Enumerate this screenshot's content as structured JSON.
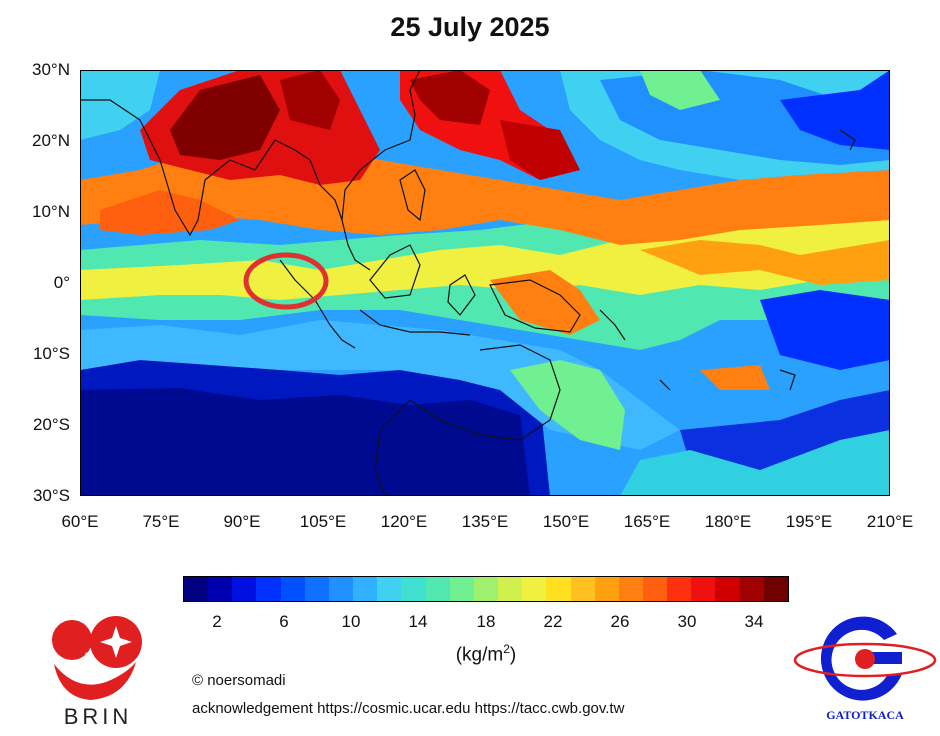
{
  "title": "25 July 2025",
  "map": {
    "lat_labels": [
      "30°N",
      "20°N",
      "10°N",
      "0°",
      "10°S",
      "20°S",
      "30°S"
    ],
    "lon_labels": [
      "60°E",
      "75°E",
      "90°E",
      "105°E",
      "120°E",
      "135°E",
      "150°E",
      "165°E",
      "180°E",
      "195°E",
      "210°E"
    ],
    "extent": {
      "lon": [
        60,
        210
      ],
      "lat": [
        -30,
        30
      ]
    },
    "highlight": {
      "description_center_lon": 98.5,
      "description_center_lat": 0.3,
      "color": "#e03030"
    }
  },
  "colorbar": {
    "ticks": [
      "2",
      "6",
      "10",
      "14",
      "18",
      "22",
      "26",
      "30",
      "34"
    ],
    "unit_prefix": "(kg/m",
    "unit_exp": "2",
    "unit_suffix": ")",
    "colors": [
      "#000080",
      "#0000b0",
      "#0010e0",
      "#0030ff",
      "#0050ff",
      "#1070ff",
      "#2090ff",
      "#30b0ff",
      "#40d0f0",
      "#40e0d0",
      "#50e8b0",
      "#70f090",
      "#a0f070",
      "#d0f050",
      "#f0f040",
      "#ffe020",
      "#ffc020",
      "#ffa010",
      "#ff8010",
      "#ff6010",
      "#ff3010",
      "#f01010",
      "#d00000",
      "#a00000",
      "#700000"
    ]
  },
  "credit": "© noersomadi",
  "acknowledgement": "acknowledgement https://cosmic.ucar.edu  https://tacc.cwb.gov.tw",
  "logos": {
    "left": "BRIN",
    "right": "GATOTKACA"
  }
}
